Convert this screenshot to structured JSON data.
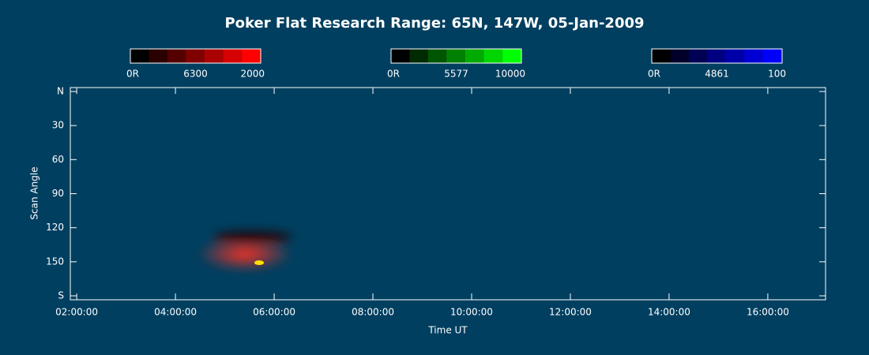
{
  "chart_data": {
    "type": "keogram",
    "title": "Poker Flat Research Range: 65N, 147W, 05-Jan-2009",
    "xlabel": "Time UT",
    "ylabel": "Scan Angle",
    "xlim": [
      1.87,
      17.17
    ],
    "xticks": [
      {
        "value": 2,
        "label": "02:00:00"
      },
      {
        "value": 4,
        "label": "04:00:00"
      },
      {
        "value": 6,
        "label": "06:00:00"
      },
      {
        "value": 8,
        "label": "08:00:00"
      },
      {
        "value": 10,
        "label": "10:00:00"
      },
      {
        "value": 12,
        "label": "12:00:00"
      },
      {
        "value": 14,
        "label": "14:00:00"
      },
      {
        "value": 16,
        "label": "16:00:00"
      }
    ],
    "ylim": [
      0,
      180
    ],
    "yticks": [
      {
        "value": 0,
        "label": "N"
      },
      30,
      60,
      90,
      120,
      150,
      {
        "value": 180,
        "label": "S"
      }
    ],
    "colorbars": [
      {
        "name": "6300",
        "low": "0R",
        "high": 2000,
        "color": "#ff0000"
      },
      {
        "name": "5577",
        "low": "0R",
        "high": 10000,
        "color": "#00ff00"
      },
      {
        "name": "4861",
        "low": "0R",
        "high": 100,
        "color": "#0000ff"
      }
    ]
  }
}
